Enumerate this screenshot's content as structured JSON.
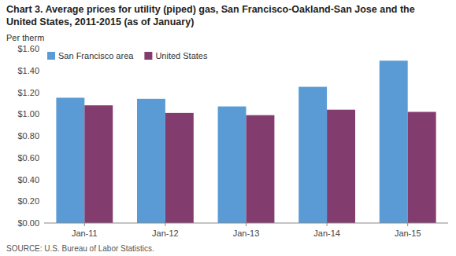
{
  "chart_data": {
    "type": "bar",
    "title": "Chart 3. Average prices for utility (piped) gas, San Francisco-Oakland-San Jose and the\nUnited States, 2011-2015  (as of January)",
    "ylabel": "Per therm",
    "source": "SOURCE: U.S. Bureau of Labor Statistics.",
    "categories": [
      "Jan-11",
      "Jan-12",
      "Jan-13",
      "Jan-14",
      "Jan-15"
    ],
    "series": [
      {
        "name": "San Francisco area",
        "color": "#5B9BD5",
        "values": [
          1.15,
          1.14,
          1.07,
          1.25,
          1.49
        ]
      },
      {
        "name": "United States",
        "color": "#833C6E",
        "values": [
          1.08,
          1.01,
          0.99,
          1.04,
          1.02
        ]
      }
    ],
    "ylim": [
      0.0,
      1.6
    ],
    "yticks": [
      {
        "value": 0.0,
        "label": "$0.00"
      },
      {
        "value": 0.2,
        "label": "$0.20"
      },
      {
        "value": 0.4,
        "label": "$0.40"
      },
      {
        "value": 0.6,
        "label": "$0.60"
      },
      {
        "value": 0.8,
        "label": "$0.80"
      },
      {
        "value": 1.0,
        "label": "$1.00"
      },
      {
        "value": 1.2,
        "label": "$1.20"
      },
      {
        "value": 1.4,
        "label": "$1.40"
      },
      {
        "value": 1.6,
        "label": "$1.60"
      }
    ],
    "legend": "upper left",
    "grid": false
  }
}
